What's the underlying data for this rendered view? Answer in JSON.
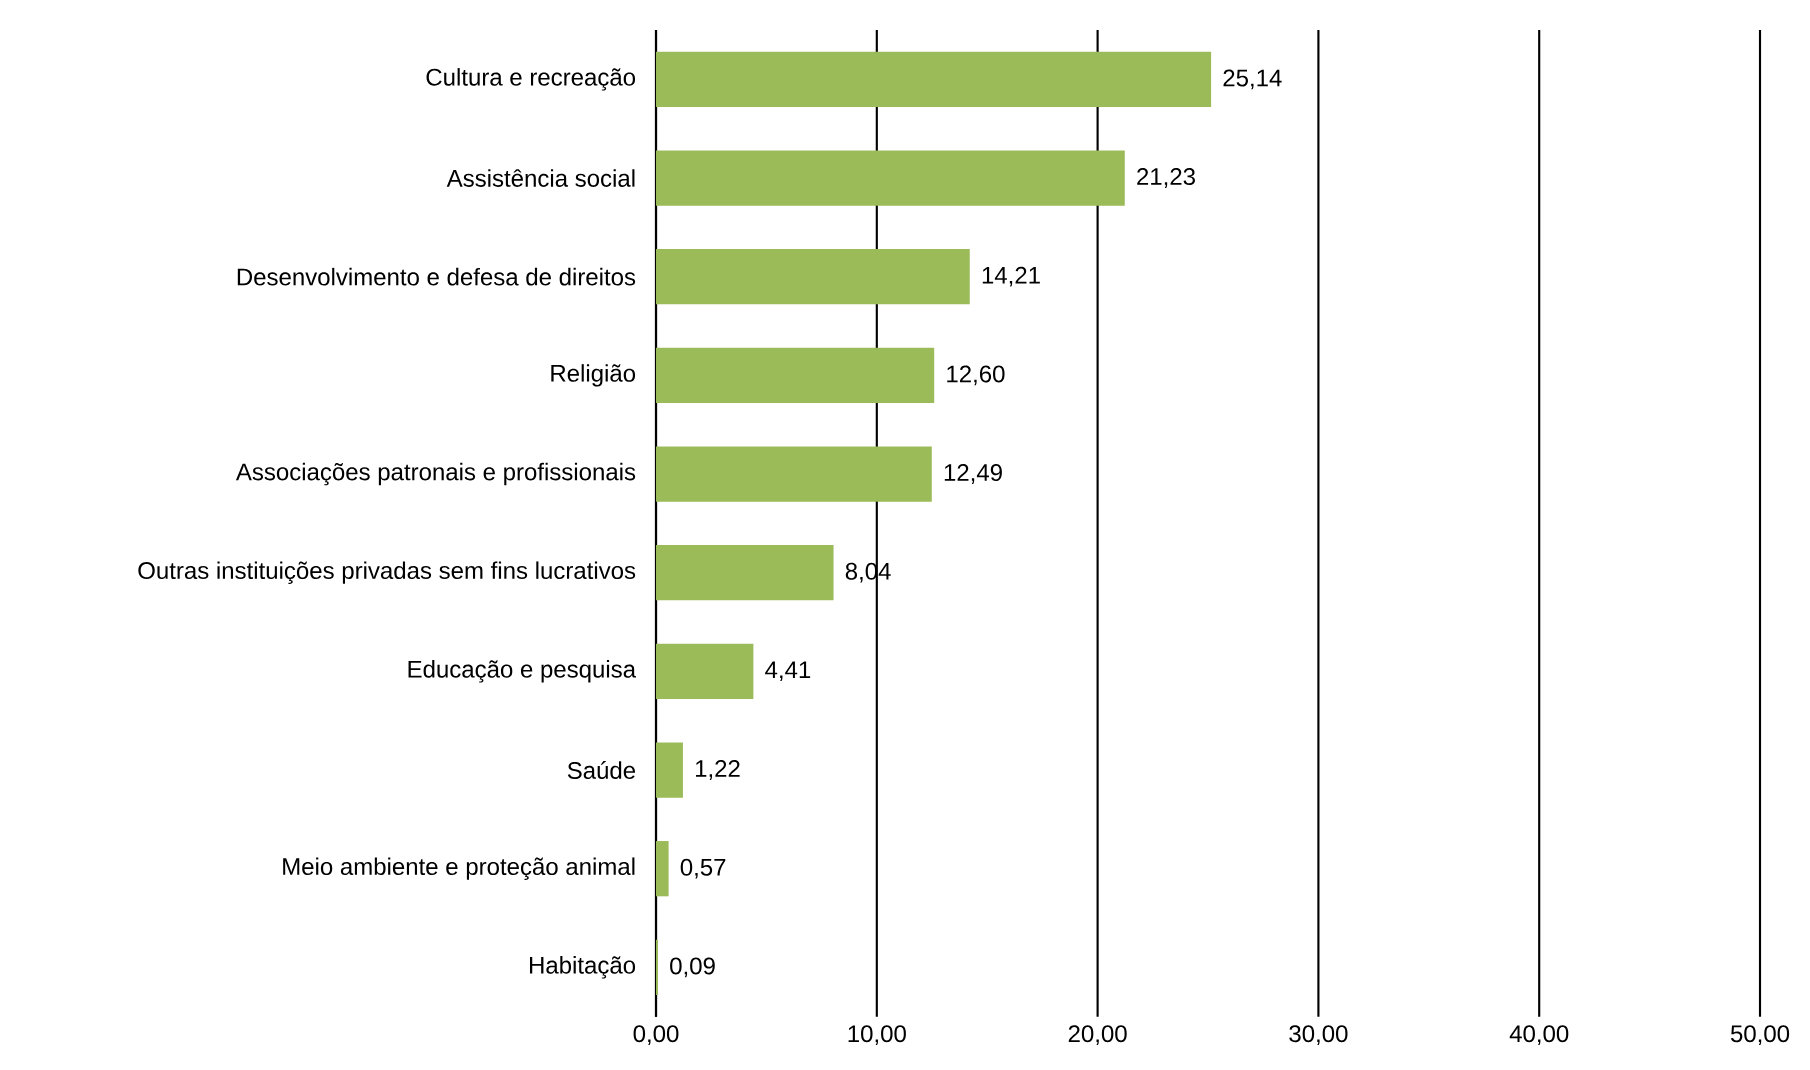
{
  "chart_data": {
    "type": "bar",
    "orientation": "horizontal",
    "categories": [
      "Cultura e recreação",
      "Assistência social",
      "Desenvolvimento e defesa de direitos",
      "Religião",
      "Associações patronais e profissionais",
      "Outras instituições privadas sem fins lucrativos",
      "Educação  e pesquisa",
      "Saúde",
      "Meio ambiente e proteção animal",
      "Habitação"
    ],
    "values": [
      25.14,
      21.23,
      14.21,
      12.6,
      12.49,
      8.04,
      4.41,
      1.22,
      0.57,
      0.09
    ],
    "value_labels": [
      "25,14",
      "21,23",
      "14,21",
      "12,60",
      "12,49",
      "8,04",
      "4,41",
      "1,22",
      "0,57",
      "0,09"
    ],
    "color": "#9bbb59",
    "grid": "x",
    "xlim": [
      0,
      50
    ],
    "xticks": [
      {
        "value": 0,
        "label": "0,00"
      },
      {
        "value": 10,
        "label": "10,00"
      },
      {
        "value": 20,
        "label": "20,00"
      },
      {
        "value": 30,
        "label": "30,00"
      },
      {
        "value": 40,
        "label": "40,00"
      },
      {
        "value": 50,
        "label": "50,00"
      }
    ]
  }
}
